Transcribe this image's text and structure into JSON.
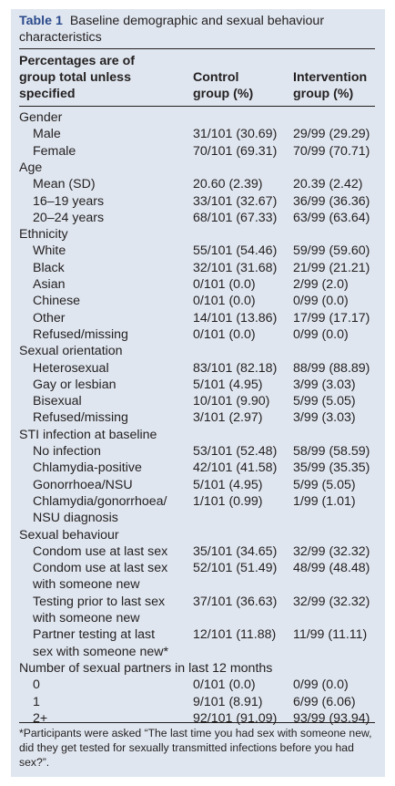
{
  "table": {
    "label": "Table 1",
    "title": "Baseline demographic and sexual behaviour characteristics",
    "header": {
      "col0": "Percentages are of\ngroup total unless\nspecified",
      "col1": "Control\ngroup (%)",
      "col2": "Intervention\ngroup (%)"
    },
    "rows": [
      {
        "label": "Gender",
        "sub": false,
        "control": "",
        "intervention": ""
      },
      {
        "label": "Male",
        "sub": true,
        "control": "31/101 (30.69)",
        "intervention": "29/99 (29.29)"
      },
      {
        "label": "Female",
        "sub": true,
        "control": "70/101 (69.31)",
        "intervention": "70/99 (70.71)"
      },
      {
        "label": "Age",
        "sub": false,
        "control": "",
        "intervention": ""
      },
      {
        "label": "Mean (SD)",
        "sub": true,
        "control": "20.60 (2.39)",
        "intervention": "20.39 (2.42)"
      },
      {
        "label": "16–19 years",
        "sub": true,
        "control": "33/101 (32.67)",
        "intervention": "36/99 (36.36)"
      },
      {
        "label": "20–24 years",
        "sub": true,
        "control": "68/101 (67.33)",
        "intervention": "63/99 (63.64)"
      },
      {
        "label": "Ethnicity",
        "sub": false,
        "control": "",
        "intervention": ""
      },
      {
        "label": "White",
        "sub": true,
        "control": "55/101 (54.46)",
        "intervention": "59/99 (59.60)"
      },
      {
        "label": "Black",
        "sub": true,
        "control": "32/101 (31.68)",
        "intervention": "21/99 (21.21)"
      },
      {
        "label": "Asian",
        "sub": true,
        "control": "0/101 (0.0)",
        "intervention": "2/99 (2.0)"
      },
      {
        "label": "Chinese",
        "sub": true,
        "control": "0/101 (0.0)",
        "intervention": "0/99 (0.0)"
      },
      {
        "label": "Other",
        "sub": true,
        "control": "14/101 (13.86)",
        "intervention": "17/99 (17.17)"
      },
      {
        "label": "Refused/missing",
        "sub": true,
        "control": "0/101 (0.0)",
        "intervention": "0/99 (0.0)"
      },
      {
        "label": "Sexual orientation",
        "sub": false,
        "control": "",
        "intervention": ""
      },
      {
        "label": "Heterosexual",
        "sub": true,
        "control": "83/101 (82.18)",
        "intervention": "88/99 (88.89)"
      },
      {
        "label": "Gay or lesbian",
        "sub": true,
        "control": "5/101 (4.95)",
        "intervention": "3/99 (3.03)"
      },
      {
        "label": "Bisexual",
        "sub": true,
        "control": "10/101 (9.90)",
        "intervention": "5/99 (5.05)"
      },
      {
        "label": "Refused/missing",
        "sub": true,
        "control": "3/101 (2.97)",
        "intervention": "3/99 (3.03)"
      },
      {
        "label": "STI infection at baseline",
        "sub": false,
        "control": "",
        "intervention": ""
      },
      {
        "label": "No infection",
        "sub": true,
        "control": "53/101 (52.48)",
        "intervention": "58/99 (58.59)"
      },
      {
        "label": "Chlamydia-positive",
        "sub": true,
        "control": "42/101 (41.58)",
        "intervention": "35/99 (35.35)"
      },
      {
        "label": "Gonorrhoea/NSU",
        "sub": true,
        "control": "5/101 (4.95)",
        "intervention": "5/99 (5.05)"
      },
      {
        "label": "Chlamydia/gonorrhoea/",
        "sub": true,
        "control": "1/101 (0.99)",
        "intervention": "1/99 (1.01)"
      },
      {
        "label": "NSU diagnosis",
        "sub": true,
        "control": "",
        "intervention": ""
      },
      {
        "label": "Sexual behaviour",
        "sub": false,
        "control": "",
        "intervention": ""
      },
      {
        "label": "Condom use at last sex",
        "sub": true,
        "control": "35/101 (34.65)",
        "intervention": "32/99 (32.32)"
      },
      {
        "label": "Condom use at last sex",
        "sub": true,
        "control": "52/101 (51.49)",
        "intervention": "48/99 (48.48)"
      },
      {
        "label": "with someone new",
        "sub": true,
        "control": "",
        "intervention": ""
      },
      {
        "label": "Testing prior to last sex",
        "sub": true,
        "control": "37/101 (36.63)",
        "intervention": "32/99 (32.32)"
      },
      {
        "label": "with someone new",
        "sub": true,
        "control": "",
        "intervention": ""
      },
      {
        "label": "Partner testing at last",
        "sub": true,
        "control": "12/101 (11.88)",
        "intervention": "11/99 (11.11)"
      },
      {
        "label": "sex with someone new*",
        "sub": true,
        "control": "",
        "intervention": ""
      },
      {
        "label": "Number of sexual partners in last 12 months",
        "sub": false,
        "control": "",
        "intervention": ""
      },
      {
        "label": "0",
        "sub": true,
        "control": "0/101 (0.0)",
        "intervention": "0/99 (0.0)"
      },
      {
        "label": "1",
        "sub": true,
        "control": "9/101 (8.91)",
        "intervention": "6/99 (6.06)"
      },
      {
        "label": "2+",
        "sub": true,
        "control": "92/101 (91.09)",
        "intervention": "93/99 (93.94)"
      }
    ],
    "footnote": "*Participants were asked “The last time you had sex with someone new, did they get tested for sexually transmitted infections before you had sex?”."
  }
}
